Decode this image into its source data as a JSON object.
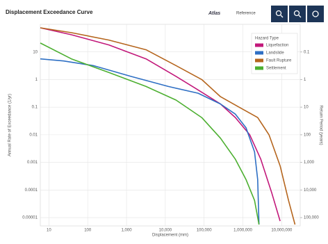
{
  "header": {
    "brand": "Atlas",
    "link": "Reference"
  },
  "chart_data": {
    "type": "line",
    "title": "Displacement Exceedance Curve",
    "xlabel": "Displacement (mm)",
    "ylabel": "Annual Rate of Exceedance (1/yr)",
    "y2label": "Return Period (years)",
    "log_x": true,
    "log_y": true,
    "grid": true,
    "legend_title": "Hazard Type",
    "legend": "upper right",
    "xlim": [
      6,
      30000000
    ],
    "xticks": [
      10,
      100,
      {
        "value": 1000,
        "label": "1,000"
      },
      {
        "value": 10000,
        "label": "10,000"
      },
      {
        "value": 100000,
        "label": "100,000"
      },
      {
        "value": 1000000,
        "label": "1,000,000"
      },
      {
        "value": 10000000,
        "label": "10,000,000"
      }
    ],
    "ylim": [
      5e-06,
      100
    ],
    "yticks": [
      10,
      1,
      0.1,
      0.01,
      0.001,
      0.0001,
      1e-05
    ],
    "y2lim": [
      200000,
      0.01
    ],
    "y2ticks": [
      0.1,
      1,
      10,
      100,
      {
        "value": 1000,
        "label": "1,000"
      },
      {
        "value": 10000,
        "label": "10,000"
      },
      {
        "value": 100000,
        "label": "100,000"
      }
    ],
    "series": [
      {
        "name": "Liquefaction",
        "color": "#c2187a",
        "x": [
          6,
          38,
          350,
          3200,
          19000,
          70000,
          265000,
          640000,
          1500000,
          2900000,
          5600000,
          9100000
        ],
        "values": [
          75,
          42,
          18,
          5.6,
          1.3,
          0.42,
          0.13,
          0.042,
          0.01,
          0.0013,
          7.5e-05,
          7.5e-06
        ]
      },
      {
        "name": "Landslide",
        "color": "#2e6fc4",
        "x": [
          6,
          24,
          140,
          1300,
          12000,
          70000,
          265000,
          640000,
          1200000,
          2000000,
          2400000,
          2600000
        ],
        "values": [
          5.6,
          4.7,
          3.2,
          1.3,
          0.56,
          0.32,
          0.13,
          0.056,
          0.018,
          0.0024,
          0.00024,
          5.6e-06
        ]
      },
      {
        "name": "Fault Rupture",
        "color": "#b5651d",
        "x": [
          6,
          38,
          350,
          3200,
          19000,
          87000,
          265000,
          800000,
          2400000,
          4700000,
          9100000,
          15000000,
          22000000
        ],
        "values": [
          75,
          50,
          27,
          12,
          3.2,
          1,
          0.24,
          0.1,
          0.042,
          0.01,
          0.00075,
          4.2e-05,
          5.6e-06
        ]
      },
      {
        "name": "Settlement",
        "color": "#4caf30",
        "x": [
          6,
          38,
          350,
          3200,
          19000,
          87000,
          265000,
          640000,
          1200000,
          2000000,
          2600000
        ],
        "values": [
          21,
          5.6,
          1.8,
          0.56,
          0.18,
          0.042,
          0.0075,
          0.0013,
          0.00024,
          4.2e-05,
          5.6e-06
        ]
      }
    ]
  }
}
